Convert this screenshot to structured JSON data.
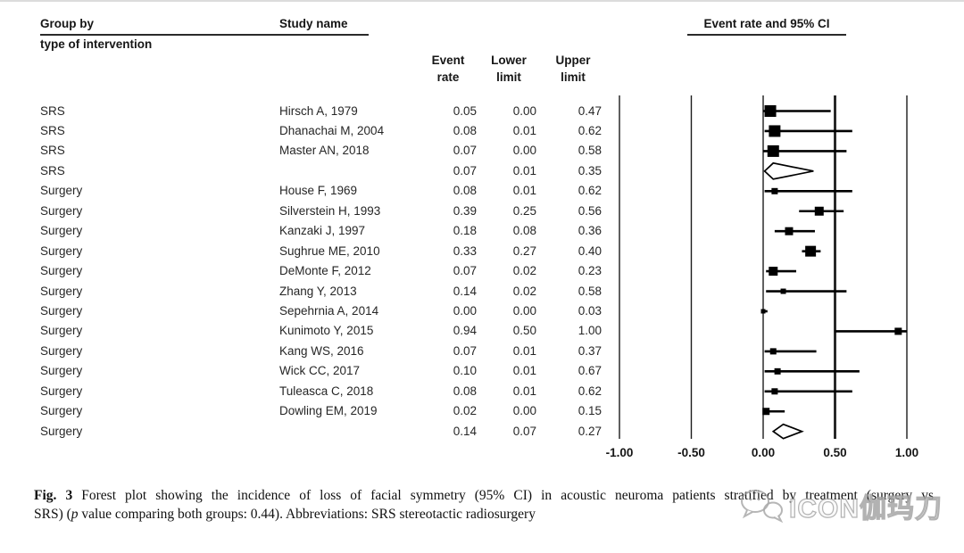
{
  "header": {
    "group_by": "Group by",
    "group_by_sub": "type of intervention",
    "study_name": "Study name",
    "plot_title": "Event rate and 95% CI",
    "stat_columns": [
      {
        "line1": "Event",
        "line2": "rate"
      },
      {
        "line1": "Lower",
        "line2": "limit"
      },
      {
        "line1": "Upper",
        "line2": "limit"
      }
    ]
  },
  "chart_data": {
    "type": "forest",
    "title": "Event rate and 95% CI",
    "x_axis": {
      "ticks": [
        -1.0,
        -0.5,
        0.0,
        0.5,
        1.0
      ],
      "tick_labels": [
        "-1.00",
        "-0.50",
        "0.00",
        "0.50",
        "1.00"
      ],
      "emphasized_tick": "0.50",
      "xlim": [
        -1.25,
        1.25
      ],
      "grid": true
    },
    "columns": [
      "Group by type of intervention",
      "Study name",
      "Event rate",
      "Lower limit",
      "Upper limit"
    ],
    "rows": [
      {
        "group": "SRS",
        "study": "Hirsch A, 1979",
        "event_rate": 0.05,
        "lower": 0.0,
        "upper": 0.47,
        "kind": "study",
        "marker_size": 13
      },
      {
        "group": "SRS",
        "study": "Dhanachai M, 2004",
        "event_rate": 0.08,
        "lower": 0.01,
        "upper": 0.62,
        "kind": "study",
        "marker_size": 13
      },
      {
        "group": "SRS",
        "study": "Master AN, 2018",
        "event_rate": 0.07,
        "lower": 0.0,
        "upper": 0.58,
        "kind": "study",
        "marker_size": 13
      },
      {
        "group": "SRS",
        "study": "",
        "event_rate": 0.07,
        "lower": 0.01,
        "upper": 0.35,
        "kind": "summary",
        "marker_size": 9
      },
      {
        "group": "Surgery",
        "study": "House F, 1969",
        "event_rate": 0.08,
        "lower": 0.01,
        "upper": 0.62,
        "kind": "study",
        "marker_size": 7
      },
      {
        "group": "Surgery",
        "study": "Silverstein H, 1993",
        "event_rate": 0.39,
        "lower": 0.25,
        "upper": 0.56,
        "kind": "study",
        "marker_size": 10
      },
      {
        "group": "Surgery",
        "study": "Kanzaki J, 1997",
        "event_rate": 0.18,
        "lower": 0.08,
        "upper": 0.36,
        "kind": "study",
        "marker_size": 9
      },
      {
        "group": "Surgery",
        "study": "Sughrue ME, 2010",
        "event_rate": 0.33,
        "lower": 0.27,
        "upper": 0.4,
        "kind": "study",
        "marker_size": 12
      },
      {
        "group": "Surgery",
        "study": "DeMonte F, 2012",
        "event_rate": 0.07,
        "lower": 0.02,
        "upper": 0.23,
        "kind": "study",
        "marker_size": 10
      },
      {
        "group": "Surgery",
        "study": "Zhang Y, 2013",
        "event_rate": 0.14,
        "lower": 0.02,
        "upper": 0.58,
        "kind": "study",
        "marker_size": 6
      },
      {
        "group": "Surgery",
        "study": "Sepehrnia A, 2014",
        "event_rate": 0.0,
        "lower": 0.0,
        "upper": 0.03,
        "kind": "study",
        "marker_size": 5
      },
      {
        "group": "Surgery",
        "study": "Kunimoto Y, 2015",
        "event_rate": 0.94,
        "lower": 0.5,
        "upper": 1.0,
        "kind": "study",
        "marker_size": 8
      },
      {
        "group": "Surgery",
        "study": "Kang WS, 2016",
        "event_rate": 0.07,
        "lower": 0.01,
        "upper": 0.37,
        "kind": "study",
        "marker_size": 7
      },
      {
        "group": "Surgery",
        "study": "Wick CC, 2017",
        "event_rate": 0.1,
        "lower": 0.01,
        "upper": 0.67,
        "kind": "study",
        "marker_size": 7
      },
      {
        "group": "Surgery",
        "study": "Tuleasca C, 2018",
        "event_rate": 0.08,
        "lower": 0.01,
        "upper": 0.62,
        "kind": "study",
        "marker_size": 7
      },
      {
        "group": "Surgery",
        "study": "Dowling EM, 2019",
        "event_rate": 0.02,
        "lower": 0.0,
        "upper": 0.15,
        "kind": "study",
        "marker_size": 8
      },
      {
        "group": "Surgery",
        "study": "",
        "event_rate": 0.14,
        "lower": 0.07,
        "upper": 0.27,
        "kind": "summary",
        "marker_size": 8
      }
    ]
  },
  "caption": {
    "label": "Fig. 3",
    "line1": "Forest plot showing the incidence of loss of facial symmetry (95% CI) in acoustic neuroma patients stratified by treatment (surgery vs",
    "line2_pre": "SRS) (",
    "line2_italic": "p",
    "line2_post": " value comparing both groups: 0.44). Abbreviations: SRS stereotactic radiosurgery"
  },
  "watermark": {
    "text": "ICON伽玛刀",
    "icon": "wechat-icon",
    "color": "#b5b5b5"
  },
  "ink_color": "#1c1c1c"
}
